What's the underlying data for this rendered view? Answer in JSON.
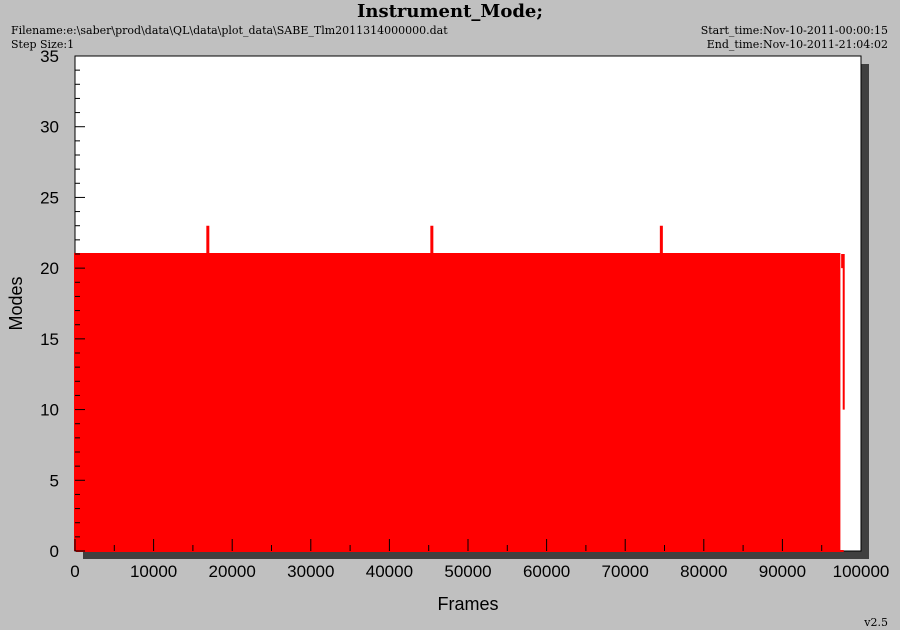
{
  "header": {
    "title": "Instrument_Mode;",
    "filename": "Filename:e:\\saber\\prod\\data\\QL\\data\\plot_data\\SABE_Tlm2011314000000.dat",
    "step_size": "Step Size:1",
    "start_time": "Start_time:Nov-10-2011-00:00:15",
    "end_time": "End_time:Nov-10-2011-21:04:02",
    "version": "v2.5"
  },
  "colors": {
    "background": "#c0c0c0",
    "plot_area": "#ffffff",
    "shadow": "#404040",
    "series": "#ff0000"
  },
  "chart_data": {
    "type": "line",
    "xlabel": "Frames",
    "ylabel": "Modes",
    "xlim": [
      0,
      100000
    ],
    "ylim": [
      0,
      35
    ],
    "x_ticks": [
      "0",
      "10000",
      "20000",
      "30000",
      "40000",
      "50000",
      "60000",
      "70000",
      "80000",
      "90000",
      "100000"
    ],
    "y_ticks": [
      "0",
      "5",
      "10",
      "15",
      "20",
      "25",
      "30",
      "35"
    ],
    "grid": false,
    "series": [
      {
        "pattern": "square wave toggling between 0 and 21 roughly every 500 frames; a few dips to 20 and 10; short spikes to 23",
        "x_start": 0,
        "x_end": 97800,
        "low": 0,
        "high": 21,
        "pulses": [
          {
            "x_start": 0,
            "x_end": 97800,
            "period": 500,
            "value": 21
          },
          {
            "x": 16900,
            "value": 23
          },
          {
            "x": 45400,
            "value": 23
          },
          {
            "x": 74600,
            "value": 23
          },
          {
            "x": 97600,
            "value": 20
          },
          {
            "x": 97800,
            "value": 10
          }
        ]
      }
    ]
  }
}
